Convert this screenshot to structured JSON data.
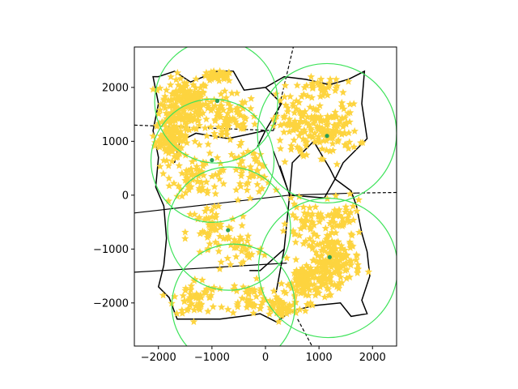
{
  "chart_data": {
    "type": "scatter",
    "title": "",
    "xlabel": "",
    "ylabel": "",
    "xlim": [
      -2450,
      2450
    ],
    "ylim": [
      -2800,
      2750
    ],
    "grid": false,
    "x_ticks": [
      -2000,
      -1000,
      0,
      1000,
      2000
    ],
    "y_ticks": [
      2000,
      1000,
      0,
      -1000,
      -2000
    ],
    "x_tick_labels": [
      "−2000",
      "−1000",
      "0",
      "1000",
      "2000"
    ],
    "y_tick_labels": [
      "2000",
      "1000",
      "0",
      "−1000",
      "−2000"
    ],
    "colors": {
      "points": "#fdd43f",
      "centers": "#2a9d55",
      "circles": "#3ee35a",
      "edges": "#000000",
      "boundary": "#000000"
    },
    "centers": [
      {
        "x": -900,
        "y": 1750
      },
      {
        "x": -1000,
        "y": 650
      },
      {
        "x": -700,
        "y": -650
      },
      {
        "x": 1200,
        "y": -1150
      },
      {
        "x": 1150,
        "y": 1100
      }
    ],
    "coverage_circles": [
      {
        "cx": -920,
        "cy": 1740,
        "r": 1150
      },
      {
        "cx": -990,
        "cy": 640,
        "r": 1150
      },
      {
        "cx": -680,
        "cy": -620,
        "r": 1150
      },
      {
        "cx": -600,
        "cy": -2050,
        "r": 1150
      },
      {
        "cx": 1150,
        "cy": 1150,
        "r": 1300
      },
      {
        "cx": 1170,
        "cy": -1350,
        "r": 1300
      }
    ],
    "voronoi_solid": [
      [
        [
          -2450,
          -330
        ],
        [
          450,
          0
        ]
      ],
      [
        [
          -2450,
          -1430
        ],
        [
          400,
          -1260
        ]
      ],
      [
        [
          450,
          0
        ],
        [
          270,
          550
        ]
      ],
      [
        [
          450,
          0
        ],
        [
          150,
          820
        ]
      ],
      [
        [
          450,
          0
        ],
        [
          1700,
          40
        ]
      ]
    ],
    "voronoi_dashed": [
      [
        [
          -2450,
          1300
        ],
        [
          150,
          1200
        ]
      ],
      [
        [
          150,
          1200
        ],
        [
          520,
          2750
        ]
      ],
      [
        [
          1700,
          40
        ],
        [
          2450,
          50
        ]
      ],
      [
        [
          600,
          -2300
        ],
        [
          870,
          -2800
        ]
      ]
    ],
    "boundary_polygon": [
      [
        -2000,
        2200
      ],
      [
        -1700,
        2300
      ],
      [
        -1400,
        2100
      ],
      [
        -900,
        2300
      ],
      [
        -600,
        2300
      ],
      [
        -400,
        1950
      ],
      [
        0,
        2000
      ],
      [
        350,
        2200
      ],
      [
        750,
        2150
      ],
      [
        1200,
        2050
      ],
      [
        1550,
        2150
      ],
      [
        1850,
        2300
      ],
      [
        1800,
        1700
      ],
      [
        1900,
        1050
      ],
      [
        1450,
        600
      ],
      [
        1300,
        300
      ],
      [
        1200,
        500
      ],
      [
        900,
        1000
      ],
      [
        500,
        600
      ],
      [
        450,
        0
      ],
      [
        1100,
        -50
      ],
      [
        1300,
        300
      ],
      [
        1600,
        80
      ],
      [
        1700,
        -200
      ],
      [
        1800,
        -700
      ],
      [
        1900,
        -1050
      ],
      [
        1950,
        -1500
      ],
      [
        1800,
        -1950
      ],
      [
        1900,
        -2200
      ],
      [
        1600,
        -2250
      ],
      [
        1400,
        -2000
      ],
      [
        900,
        -2050
      ],
      [
        500,
        -2150
      ],
      [
        200,
        -2350
      ],
      [
        -100,
        -2200
      ],
      [
        -450,
        -2250
      ],
      [
        -850,
        -2300
      ],
      [
        -1200,
        -2300
      ],
      [
        -1650,
        -2300
      ],
      [
        -1800,
        -1900
      ],
      [
        -2000,
        -1700
      ],
      [
        -1900,
        -1300
      ],
      [
        -1850,
        -800
      ],
      [
        -1900,
        -200
      ],
      [
        -2050,
        150
      ],
      [
        -2000,
        700
      ],
      [
        -2100,
        1200
      ],
      [
        -2000,
        1700
      ],
      [
        -2100,
        2200
      ]
    ],
    "interior_edges": [
      [
        [
          450,
          0
        ],
        [
          350,
          -1000
        ],
        [
          200,
          -1800
        ]
      ],
      [
        [
          350,
          -1000
        ],
        [
          -100,
          -1400
        ],
        [
          -300,
          -1400
        ]
      ],
      [
        [
          0,
          1200
        ],
        [
          -150,
          900
        ]
      ],
      [
        [
          -1700,
          600
        ],
        [
          -1600,
          1000
        ],
        [
          -1300,
          1150
        ],
        [
          -700,
          1050
        ]
      ],
      [
        [
          -700,
          1050
        ],
        [
          0,
          1200
        ],
        [
          300,
          1700
        ],
        [
          0,
          2000
        ]
      ]
    ],
    "point_clusters": [
      {
        "cx": -1500,
        "cy": 1700,
        "sx": 380,
        "sy": 380,
        "n": 190
      },
      {
        "cx": -1750,
        "cy": 1050,
        "sx": 260,
        "sy": 320,
        "n": 120
      },
      {
        "cx": -700,
        "cy": 1400,
        "sx": 450,
        "sy": 420,
        "n": 90
      },
      {
        "cx": -900,
        "cy": 2200,
        "sx": 250,
        "sy": 80,
        "n": 40
      },
      {
        "cx": -1200,
        "cy": 350,
        "sx": 450,
        "sy": 300,
        "n": 70
      },
      {
        "cx": -300,
        "cy": 450,
        "sx": 350,
        "sy": 350,
        "n": 50
      },
      {
        "cx": -1000,
        "cy": -700,
        "sx": 400,
        "sy": 500,
        "n": 60
      },
      {
        "cx": -400,
        "cy": -1000,
        "sx": 300,
        "sy": 300,
        "n": 30
      },
      {
        "cx": -1300,
        "cy": -1900,
        "sx": 350,
        "sy": 300,
        "n": 55
      },
      {
        "cx": -300,
        "cy": -1900,
        "sx": 350,
        "sy": 250,
        "n": 50
      },
      {
        "cx": 500,
        "cy": 1300,
        "sx": 300,
        "sy": 500,
        "n": 70
      },
      {
        "cx": 1200,
        "cy": 1200,
        "sx": 450,
        "sy": 400,
        "n": 120
      },
      {
        "cx": 1000,
        "cy": 2000,
        "sx": 350,
        "sy": 150,
        "n": 40
      },
      {
        "cx": 1300,
        "cy": -1200,
        "sx": 400,
        "sy": 350,
        "n": 150
      },
      {
        "cx": 800,
        "cy": -1600,
        "sx": 350,
        "sy": 300,
        "n": 120
      },
      {
        "cx": 1400,
        "cy": -500,
        "sx": 350,
        "sy": 300,
        "n": 50
      },
      {
        "cx": 300,
        "cy": -2100,
        "sx": 250,
        "sy": 200,
        "n": 50
      },
      {
        "cx": 700,
        "cy": -500,
        "sx": 250,
        "sy": 300,
        "n": 40
      }
    ]
  }
}
